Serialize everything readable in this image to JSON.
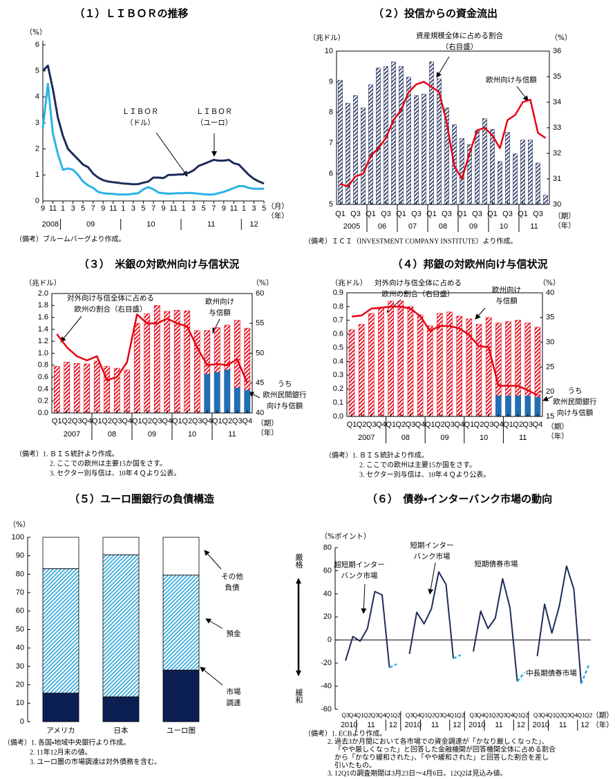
{
  "chart_data": [
    {
      "type": "line",
      "title": "（１）ＬＩＢＯＲの推移",
      "y_unit": "（%）",
      "x_unit": [
        "（月）",
        "（年）"
      ],
      "categories": [
        "9",
        null,
        "11",
        null,
        "1",
        null,
        "3",
        null,
        "5",
        null,
        "7",
        null,
        "9",
        null,
        "11",
        null,
        "1",
        null,
        "3",
        null,
        "5",
        null,
        "7",
        null,
        "9",
        null,
        "11",
        null,
        "1",
        null,
        "3",
        null,
        "5",
        null,
        "7",
        null,
        "9",
        null,
        "11",
        null,
        "1",
        null,
        "3",
        null,
        "5"
      ],
      "x_groups": [
        "2008",
        "09",
        "10",
        "11",
        "12"
      ],
      "ylim": [
        0,
        6
      ],
      "yticks": [
        0,
        1,
        2,
        3,
        4,
        5,
        6
      ],
      "series": [
        {
          "color": "#1c2b5a",
          "values": [
            5.0,
            5.2,
            4.3,
            3.2,
            2.5,
            2.0,
            1.8,
            1.6,
            1.4,
            1.3,
            1.05,
            0.9,
            0.8,
            0.75,
            0.72,
            0.7,
            0.67,
            0.66,
            0.64,
            0.65,
            0.7,
            0.75,
            0.9,
            0.9,
            0.88,
            1.0,
            1.0,
            1.02,
            1.02,
            1.08,
            1.18,
            1.35,
            1.42,
            1.5,
            1.58,
            1.55,
            1.55,
            1.58,
            1.45,
            1.4,
            1.2,
            1.0,
            0.85,
            0.75,
            0.67
          ]
        },
        {
          "color": "#29b2e8",
          "values": [
            2.8,
            4.5,
            2.6,
            1.8,
            1.2,
            1.25,
            1.2,
            1.0,
            0.75,
            0.6,
            0.5,
            0.35,
            0.3,
            0.28,
            0.27,
            0.25,
            0.25,
            0.25,
            0.28,
            0.3,
            0.45,
            0.53,
            0.45,
            0.32,
            0.3,
            0.28,
            0.29,
            0.3,
            0.3,
            0.31,
            0.3,
            0.28,
            0.26,
            0.25,
            0.25,
            0.3,
            0.35,
            0.42,
            0.5,
            0.57,
            0.57,
            0.5,
            0.47,
            0.47,
            0.47
          ]
        }
      ],
      "annotations": [
        [
          "ＬＩＢＯＲ",
          "（ドル）"
        ],
        [
          "ＬＩＢＯＲ",
          "（ユーロ）"
        ]
      ],
      "notes": [
        "（備考）ブルームバーグより作成。"
      ]
    },
    {
      "type": "bar_line",
      "title": "（２）投信からの資金流出",
      "y_unit": "（兆ドル）",
      "y2_unit": "（%）",
      "x_unit": [
        "（期）",
        "（年）"
      ],
      "categories": [
        "Q1",
        null,
        "Q3",
        null,
        "Q1",
        null,
        "Q3",
        null,
        "Q1",
        null,
        "Q3",
        null,
        "Q1",
        null,
        "Q3",
        null,
        "Q1",
        null,
        "Q3",
        null,
        "Q1",
        null,
        "Q3",
        null,
        "Q1",
        null,
        "Q3",
        null
      ],
      "x_groups": [
        "2005",
        "06",
        "07",
        "08",
        "09",
        "10",
        "11"
      ],
      "ylim": [
        5,
        10
      ],
      "yticks": [
        5,
        6,
        7,
        8,
        9,
        10
      ],
      "y2lim": [
        30,
        36
      ],
      "y2ticks": [
        30,
        31,
        32,
        33,
        34,
        35,
        36
      ],
      "series": [
        {
          "type": "bar",
          "color": "#33406b",
          "hatch": true,
          "values": [
            9.05,
            8.3,
            8.55,
            8.15,
            8.9,
            9.45,
            9.5,
            9.65,
            9.5,
            9.15,
            8.55,
            8.6,
            9.65,
            9.1,
            8.15,
            7.6,
            7.15,
            6.95,
            7.4,
            7.8,
            7.45,
            6.4,
            7.35,
            6.65,
            7.1,
            7.1,
            6.35,
            5.3
          ]
        },
        {
          "type": "line",
          "axis": "y2",
          "color": "#e60012",
          "values": [
            30.8,
            30.7,
            31.1,
            31.2,
            31.9,
            32.2,
            32.6,
            33.3,
            33.7,
            34.4,
            34.7,
            34.8,
            34.6,
            34.4,
            33.2,
            31.5,
            31.0,
            32.0,
            32.9,
            33.0,
            32.7,
            32.2,
            33.3,
            33.5,
            34.0,
            34.1,
            32.8,
            32.6
          ]
        }
      ],
      "annotations": [
        [
          "資産規模全体に占める割合",
          "（右目盛）"
        ],
        [
          "欧州向け与信額"
        ]
      ],
      "notes": [
        "（備考）ＩＣＩ（INVESTMENT COMPANY INSTITUTE）より作成。"
      ]
    },
    {
      "type": "bar_line",
      "title": "（３）　米銀の対欧州向け与信状況",
      "y_unit": "（兆ドル）",
      "y2_unit": "（%）",
      "x_unit": [
        "（期）",
        "（年）"
      ],
      "categories": [
        "Q1",
        "Q2",
        "Q3",
        "Q4",
        "Q1",
        "Q2",
        "Q3",
        "Q4",
        "Q1",
        "Q2",
        "Q3",
        "Q4",
        "Q1",
        "Q2",
        "Q3",
        "Q4",
        "Q1",
        "Q2",
        "Q3",
        "Q4"
      ],
      "x_groups": [
        "2007",
        "08",
        "09",
        "10",
        "11"
      ],
      "ylim": [
        0,
        2
      ],
      "yticks": [
        {
          "value": 0,
          "label": "0.0"
        },
        0.2,
        0.4,
        0.6,
        0.8,
        {
          "value": 1,
          "label": "1.0"
        },
        1.2,
        1.4,
        1.6,
        1.8,
        {
          "value": 2,
          "label": "2.0"
        }
      ],
      "y2lim": [
        40,
        60
      ],
      "y2ticks": [
        40,
        45,
        50,
        55,
        60
      ],
      "series": [
        {
          "type": "bar",
          "color": "#e60012",
          "hatch": true,
          "values": [
            0.78,
            0.85,
            0.83,
            0.82,
            0.87,
            0.78,
            0.75,
            0.72,
            1.5,
            1.66,
            1.8,
            1.7,
            1.72,
            1.71,
            1.38,
            1.38,
            1.43,
            1.47,
            1.55,
            1.42
          ]
        },
        {
          "type": "bar",
          "color": "#1f6fb4",
          "values": [
            null,
            null,
            null,
            null,
            null,
            null,
            null,
            null,
            null,
            null,
            null,
            null,
            null,
            null,
            null,
            0.65,
            0.68,
            0.72,
            0.42,
            0.38
          ]
        },
        {
          "type": "line",
          "axis": "y2",
          "color": "#e60012",
          "values": [
            53.2,
            51,
            49.5,
            48.8,
            49.5,
            45.5,
            46,
            48.5,
            56.5,
            55,
            55,
            55.8,
            55,
            54.5,
            51,
            48,
            48.2,
            48,
            49,
            45
          ]
        }
      ],
      "annotations": [
        [
          "対外向け与信全体に占める",
          "欧州の割合（右目盛）"
        ],
        [
          "欧州向け",
          "与信額"
        ],
        [
          "うち",
          "欧州民間銀行",
          "向け与信額"
        ]
      ],
      "notes": [
        "（備考）1. ＢＩＳ統計より作成。",
        "2. ここでの欧州は主要15か国をさす。",
        "3. セクター別与信は、10年４Ｑより公表。"
      ]
    },
    {
      "type": "bar_line",
      "title": "（４）邦銀の対欧州向け与信状況",
      "y_unit": "（兆ドル）",
      "y2_unit": "（%）",
      "x_unit": [
        "（期）",
        "（年）"
      ],
      "categories": [
        "Q1",
        "Q2",
        "Q3",
        "Q4",
        "Q1",
        "Q2",
        "Q3",
        "Q4",
        "Q1",
        "Q2",
        "Q3",
        "Q4",
        "Q1",
        "Q2",
        "Q3",
        "Q4",
        "Q1",
        "Q2",
        "Q3",
        "Q4"
      ],
      "x_groups": [
        "2007",
        "08",
        "09",
        "10",
        "11"
      ],
      "ylim": [
        0,
        0.9
      ],
      "yticks": [
        {
          "value": 0,
          "label": "0.0"
        },
        0.1,
        0.2,
        0.3,
        0.4,
        0.5,
        0.6,
        0.7,
        0.8,
        0.9
      ],
      "y2lim": [
        15,
        40
      ],
      "y2ticks": [
        15,
        20,
        25,
        30,
        35,
        40
      ],
      "series": [
        {
          "type": "bar",
          "color": "#e60012",
          "hatch": true,
          "values": [
            0.63,
            0.67,
            0.75,
            0.79,
            0.84,
            0.84,
            0.8,
            0.74,
            0.66,
            0.75,
            0.76,
            0.73,
            0.71,
            0.67,
            0.72,
            0.68,
            0.69,
            0.7,
            0.68,
            0.65
          ]
        },
        {
          "type": "bar",
          "color": "#1f6fb4",
          "values": [
            null,
            null,
            null,
            null,
            null,
            null,
            null,
            null,
            null,
            null,
            null,
            null,
            null,
            null,
            null,
            0.15,
            0.15,
            0.15,
            0.15,
            0.14
          ]
        },
        {
          "type": "line",
          "axis": "y2",
          "color": "#e60012",
          "values": [
            35.2,
            35.4,
            36.8,
            37,
            37.2,
            37.2,
            36.8,
            35.3,
            32.3,
            33.3,
            33.3,
            32.8,
            31.5,
            29.2,
            29,
            21.2,
            21.2,
            21.2,
            20.3,
            19.3
          ]
        }
      ],
      "annotations": [
        [
          "対外向け与信全体に占める",
          "欧州の割合（右目盛）"
        ],
        [
          "欧州向け",
          "与信額"
        ],
        [
          "うち",
          "欧州民間銀行",
          "向け与信額"
        ]
      ],
      "notes": [
        "（備考）1. ＢＩＳ統計より作成。",
        "2. ここでの欧州は主要15か国をさす。",
        "3. セクター別与信は、10年４Ｑより公表。"
      ]
    },
    {
      "type": "stacked_bar",
      "title": "（５）ユーロ圏銀行の負債構造",
      "y_unit": "（%）",
      "categories": [
        "アメリカ",
        "日本",
        "ユーロ圏"
      ],
      "ylim": [
        0,
        100
      ],
      "yticks": [
        0,
        10,
        20,
        30,
        40,
        50,
        60,
        70,
        80,
        90,
        100
      ],
      "series": [
        {
          "name": [
            "市場",
            "調達"
          ],
          "color": "#0c1f52",
          "values": [
            15.5,
            13.5,
            28
          ]
        },
        {
          "name": [
            "預金"
          ],
          "color": "#3aa9dd",
          "hatch": true,
          "values": [
            67.5,
            77,
            51.5
          ]
        },
        {
          "name": [
            "その他",
            "負債"
          ],
          "color": "#ffffff",
          "values": [
            17,
            9.5,
            20.5
          ]
        }
      ],
      "notes": [
        "（備考）1. 各国・地域中央銀行より作成。",
        "2. 11年12月末の値。",
        "3. ユーロ圏の市場調達は対外債務を含む。"
      ]
    },
    {
      "type": "line_panels",
      "title": "（６）　債券・インターバンク市場の動向",
      "y_unit": "（%ポイント）",
      "x_unit": [
        "（期）",
        "（年）"
      ],
      "categories": [
        "Q3",
        "Q4",
        "Q1",
        "Q2",
        "Q3",
        "Q4",
        "Q1",
        "Q2"
      ],
      "x_groups": [
        "2010",
        "11",
        "12"
      ],
      "ylim": [
        -60,
        80
      ],
      "yticks": [
        -60,
        -40,
        -20,
        0,
        20,
        40,
        60,
        80
      ],
      "side_labels": [
        "厳格",
        "緩和"
      ],
      "forecast_color": "#29b2e8",
      "series": [
        {
          "name": [
            "超短期インター",
            "バンク市場"
          ],
          "color": "#1c2b5a",
          "values": [
            -18,
            3,
            -1,
            10,
            42,
            39,
            -24,
            -21
          ]
        },
        {
          "name": [
            "短期インター",
            "バンク市場"
          ],
          "color": "#1c2b5a",
          "values": [
            -12,
            24,
            14,
            27,
            59,
            48,
            -16,
            -13
          ]
        },
        {
          "name": [
            "短期債券市場"
          ],
          "color": "#1c2b5a",
          "values": [
            -10,
            25,
            10,
            19,
            53,
            28,
            -36,
            -28
          ]
        },
        {
          "name": [
            "中長期債券市場"
          ],
          "color": "#1c2b5a",
          "values": [
            -14,
            31,
            6,
            29,
            64,
            44,
            -38,
            -22
          ]
        }
      ],
      "notes": [
        "（備考）1. ECBより作成。",
        "2. 過去3か月間において各市場での資金調達が「かなり厳しくなった」、",
        "「やや厳しくなった」と回答した金融機関が回答機関全体に占める割合",
        "から「かなり緩和された」、「やや緩和された」と回答した割合を差し",
        "引いたもの。",
        "3. 12Q1の調査期間は3月23日～4月6日。12Q2は見込み値。"
      ]
    }
  ]
}
